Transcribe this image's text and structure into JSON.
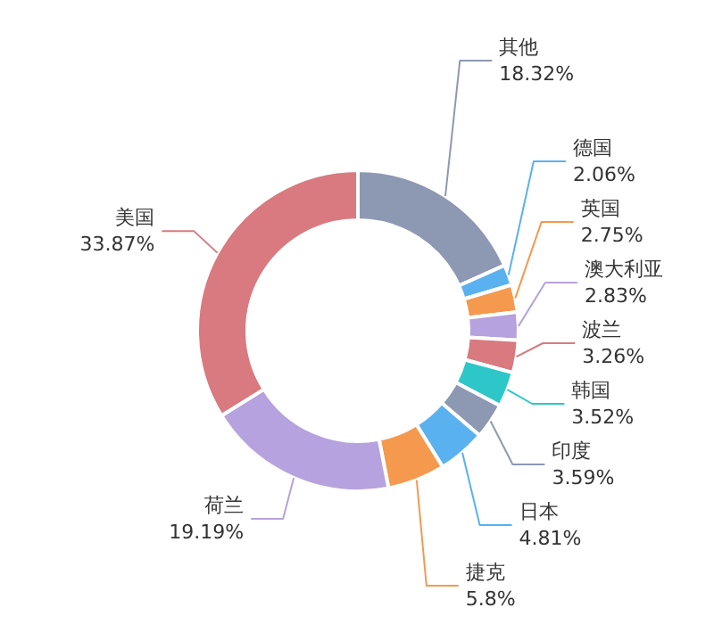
{
  "chart_data": {
    "type": "donut",
    "categories": [
      "其他",
      "德国",
      "英国",
      "澳大利亚",
      "波兰",
      "韩国",
      "印度",
      "日本",
      "捷克",
      "荷兰",
      "美国"
    ],
    "values": [
      18.32,
      2.06,
      2.75,
      2.83,
      3.26,
      3.52,
      3.59,
      4.81,
      5.8,
      19.19,
      33.87
    ],
    "value_labels": [
      "18.32%",
      "2.06%",
      "2.75%",
      "2.83%",
      "3.26%",
      "3.52%",
      "3.59%",
      "4.81%",
      "5.8%",
      "19.19%",
      "33.87%"
    ],
    "colors": [
      "#8d98b3",
      "#5ab1ef",
      "#f5994e",
      "#b6a2de",
      "#d87a80",
      "#2ec7c9",
      "#8d98b3",
      "#5ab1ef",
      "#f5994e",
      "#b6a2de",
      "#d87a80"
    ],
    "legend": false
  }
}
